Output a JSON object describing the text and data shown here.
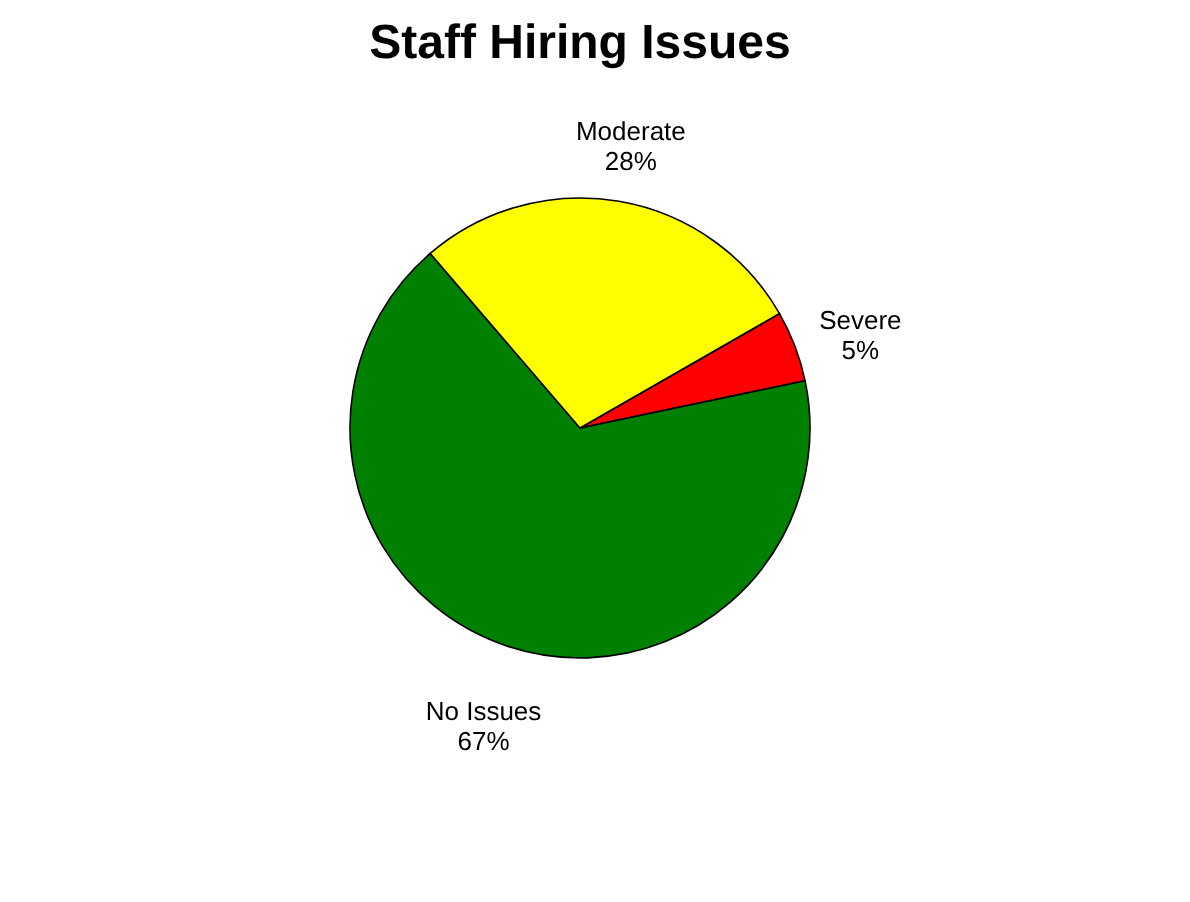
{
  "chart_data": {
    "type": "pie",
    "title": "Staff Hiring Issues",
    "categories": [
      "Severe",
      "No Issues",
      "Moderate"
    ],
    "values": [
      5,
      67,
      28
    ],
    "value_labels": [
      "5%",
      "67%",
      "28%"
    ],
    "colors": [
      "#ff0000",
      "#008000",
      "#ffff00"
    ],
    "legend": false
  }
}
